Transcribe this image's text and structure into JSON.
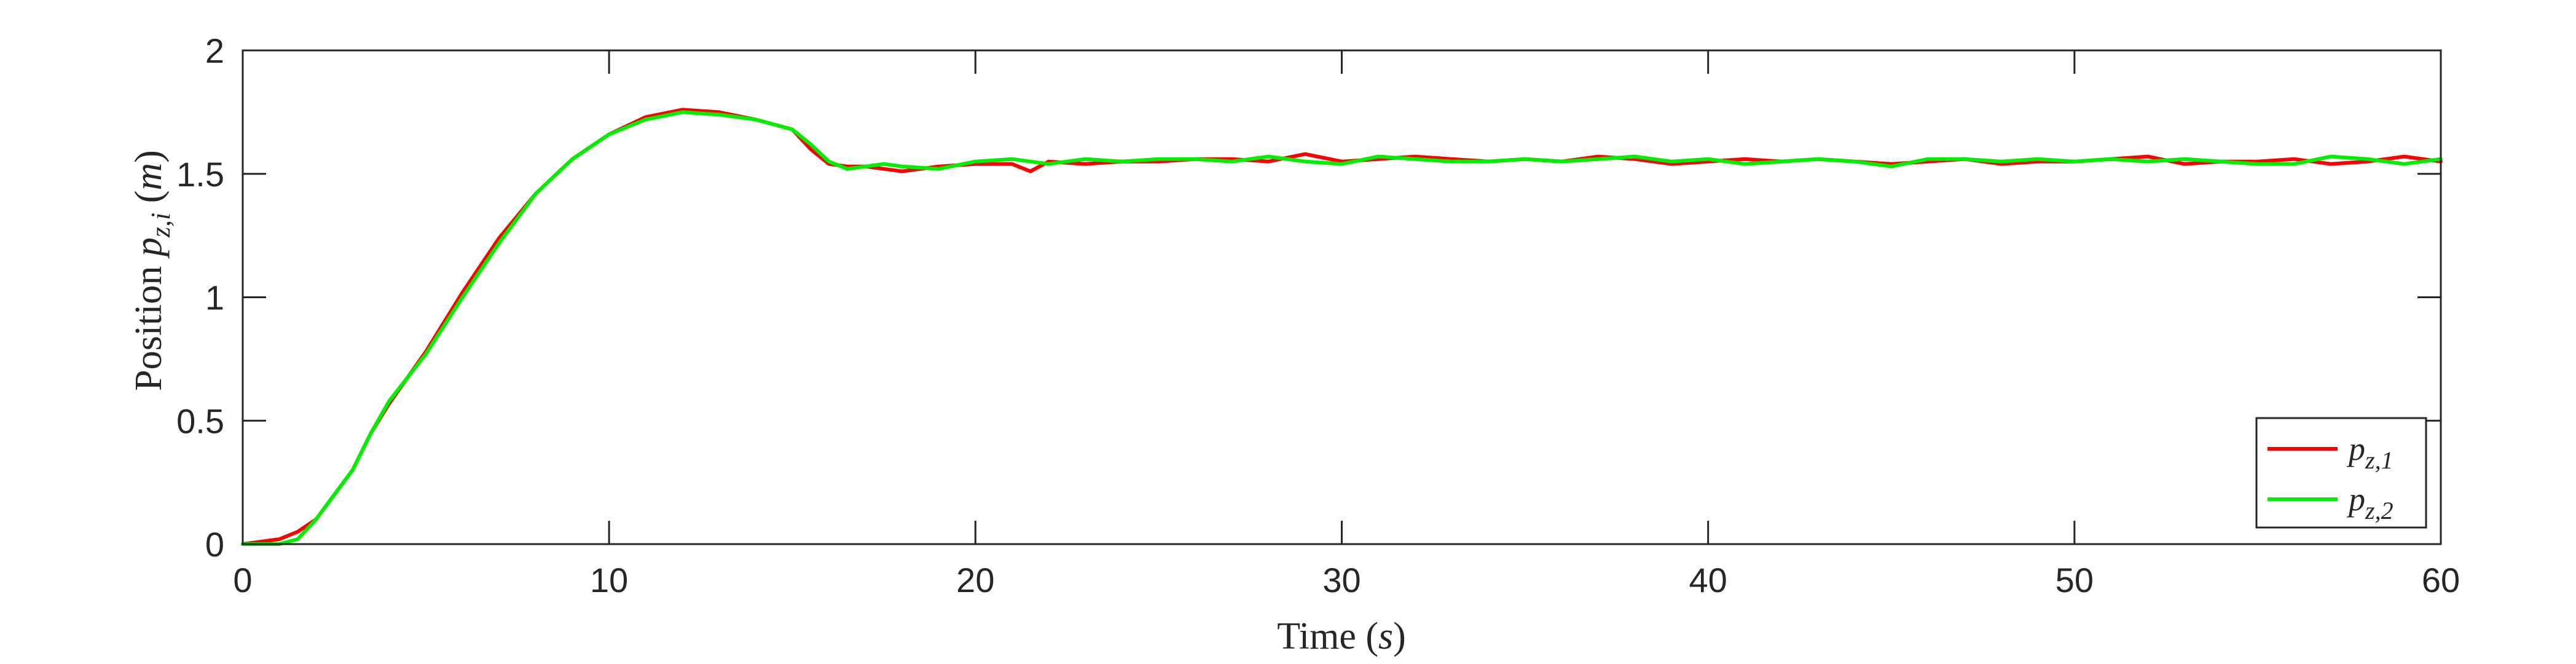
{
  "chart_data": {
    "type": "line",
    "xlabel": "Time (s)",
    "ylabel": "Position p_{z,i} (m)",
    "xlim": [
      0,
      60
    ],
    "ylim": [
      0,
      2
    ],
    "xticks": [
      0,
      10,
      20,
      30,
      40,
      50,
      60
    ],
    "xtick_labels": [
      "0",
      "10",
      "20",
      "30",
      "40",
      "50",
      "60"
    ],
    "yticks": [
      0,
      0.5,
      1,
      1.5,
      2
    ],
    "ytick_labels": [
      "0",
      "0.5",
      "1",
      "1.5",
      "2"
    ],
    "grid": false,
    "box": true,
    "legend_position": "bottom-right",
    "series": [
      {
        "name": "p_{z,1}",
        "color": "#ff0000",
        "x": [
          0,
          0.5,
          1,
          1.5,
          2,
          2.5,
          3,
          3.5,
          4,
          5,
          6,
          7,
          8,
          9,
          10,
          11,
          12,
          13,
          14,
          15,
          15.5,
          16,
          16.5,
          17,
          17.5,
          18,
          19,
          20,
          21,
          21.5,
          22,
          23,
          24,
          25,
          26,
          27,
          28,
          29,
          30,
          31,
          32,
          33,
          34,
          35,
          36,
          37,
          38,
          39,
          40,
          41,
          42,
          43,
          44,
          45,
          46,
          47,
          48,
          49,
          50,
          51,
          52,
          53,
          54,
          55,
          56,
          57,
          58,
          59,
          60
        ],
        "y": [
          0.0,
          0.01,
          0.02,
          0.05,
          0.1,
          0.2,
          0.3,
          0.45,
          0.57,
          0.78,
          1.02,
          1.24,
          1.42,
          1.56,
          1.66,
          1.73,
          1.76,
          1.75,
          1.72,
          1.68,
          1.6,
          1.54,
          1.53,
          1.53,
          1.52,
          1.51,
          1.53,
          1.54,
          1.54,
          1.51,
          1.55,
          1.54,
          1.55,
          1.55,
          1.56,
          1.56,
          1.55,
          1.58,
          1.55,
          1.56,
          1.57,
          1.56,
          1.55,
          1.56,
          1.55,
          1.57,
          1.56,
          1.54,
          1.55,
          1.56,
          1.55,
          1.56,
          1.55,
          1.54,
          1.55,
          1.56,
          1.54,
          1.55,
          1.55,
          1.56,
          1.57,
          1.54,
          1.55,
          1.55,
          1.56,
          1.54,
          1.55,
          1.57,
          1.55
        ]
      },
      {
        "name": "p_{z,2}",
        "color": "#00ee00",
        "x": [
          0,
          0.5,
          1,
          1.5,
          2,
          2.5,
          3,
          3.5,
          4,
          5,
          6,
          7,
          8,
          9,
          10,
          11,
          12,
          13,
          14,
          15,
          15.5,
          16,
          16.5,
          17,
          17.5,
          18,
          19,
          20,
          21,
          22,
          23,
          24,
          25,
          26,
          27,
          28,
          29,
          30,
          31,
          32,
          33,
          34,
          35,
          36,
          37,
          38,
          39,
          40,
          41,
          42,
          43,
          44,
          45,
          46,
          47,
          48,
          49,
          50,
          51,
          52,
          53,
          54,
          55,
          56,
          57,
          58,
          59,
          60
        ],
        "y": [
          0.0,
          0.0,
          0.0,
          0.02,
          0.1,
          0.2,
          0.3,
          0.45,
          0.58,
          0.77,
          1.0,
          1.22,
          1.42,
          1.56,
          1.66,
          1.72,
          1.75,
          1.74,
          1.72,
          1.68,
          1.62,
          1.55,
          1.52,
          1.53,
          1.54,
          1.53,
          1.52,
          1.55,
          1.56,
          1.54,
          1.56,
          1.55,
          1.56,
          1.56,
          1.55,
          1.57,
          1.55,
          1.54,
          1.57,
          1.56,
          1.55,
          1.55,
          1.56,
          1.55,
          1.56,
          1.57,
          1.55,
          1.56,
          1.54,
          1.55,
          1.56,
          1.55,
          1.53,
          1.56,
          1.56,
          1.55,
          1.56,
          1.55,
          1.56,
          1.55,
          1.56,
          1.55,
          1.54,
          1.54,
          1.57,
          1.56,
          1.54,
          1.56
        ]
      }
    ]
  }
}
